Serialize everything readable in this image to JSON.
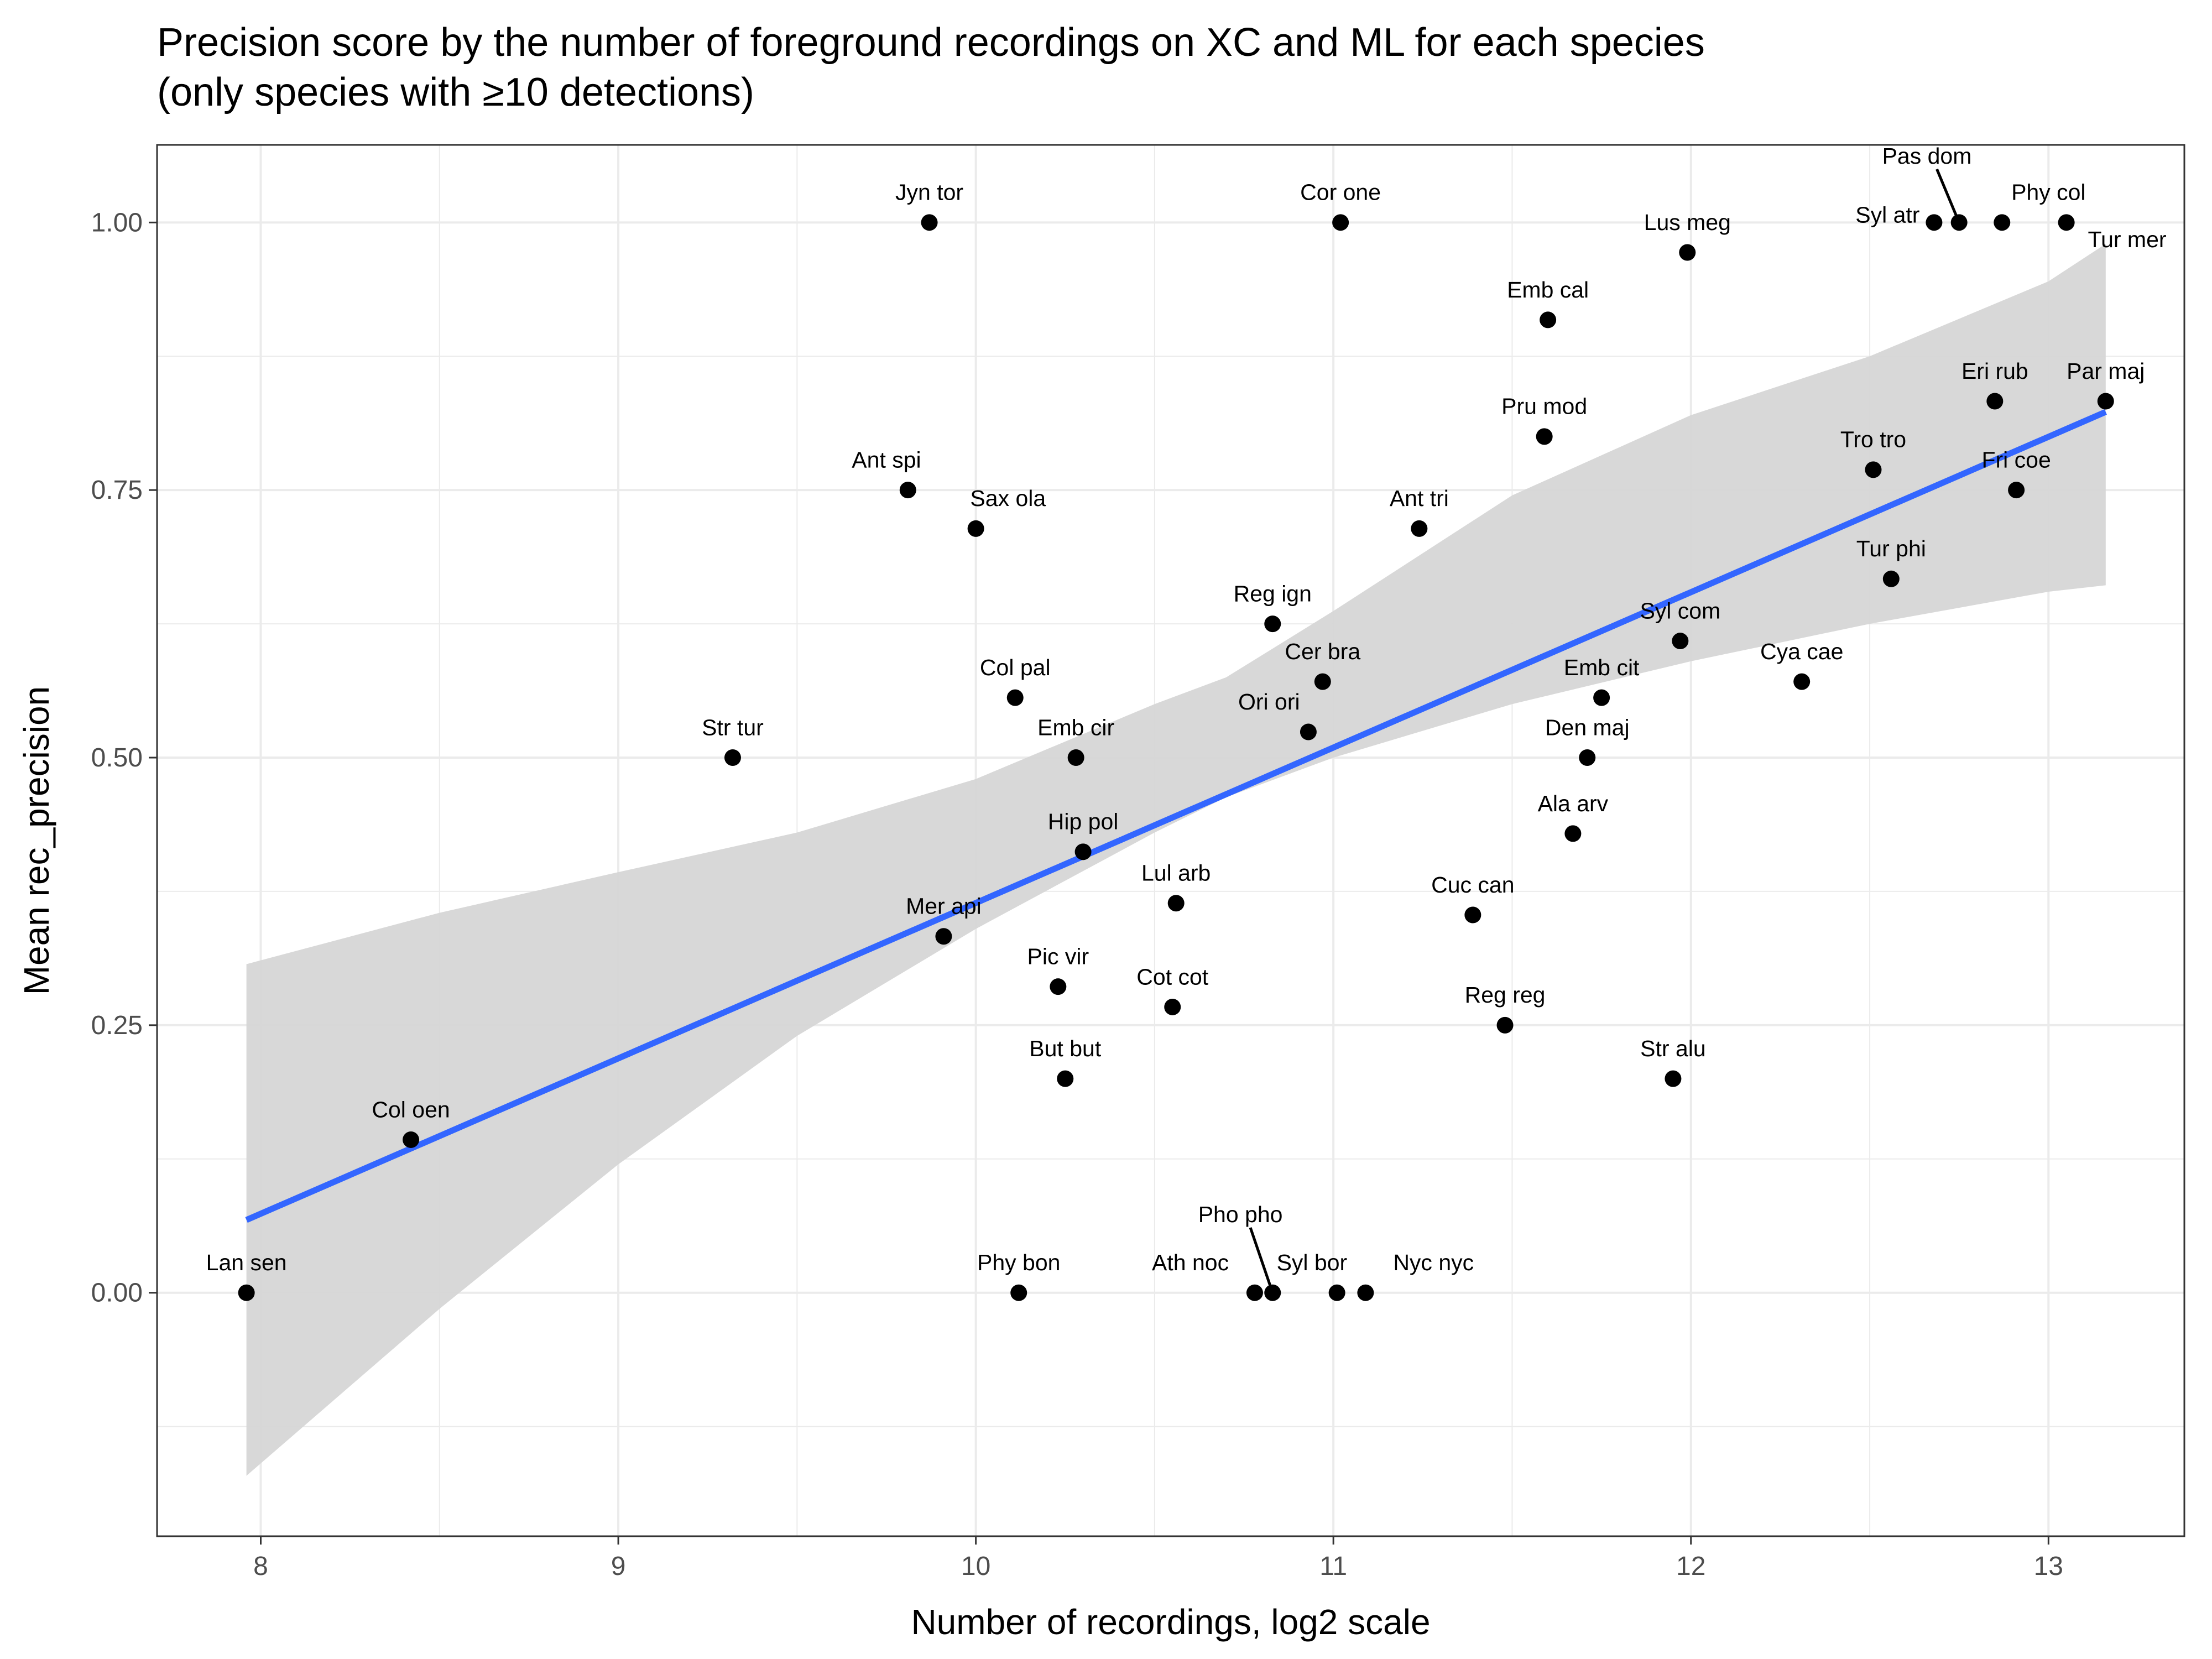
{
  "chart_data": {
    "type": "scatter",
    "title_line1": "Precision score by the number of foreground recordings on XC and ML for each species",
    "title_line2": "(only species with ≥10 detections)",
    "xlabel": "Number of recordings, log2 scale",
    "ylabel": "Mean rec_precision",
    "xlim": [
      7.71,
      13.38
    ],
    "ylim": [
      -0.2275,
      1.0725
    ],
    "x_ticks": [
      {
        "value": 8,
        "label": "8"
      },
      {
        "value": 9,
        "label": "9"
      },
      {
        "value": 10,
        "label": "10"
      },
      {
        "value": 11,
        "label": "11"
      },
      {
        "value": 12,
        "label": "12"
      },
      {
        "value": 13,
        "label": "13"
      }
    ],
    "y_ticks": [
      {
        "value": 0.0,
        "label": "0.00"
      },
      {
        "value": 0.25,
        "label": "0.25"
      },
      {
        "value": 0.5,
        "label": "0.50"
      },
      {
        "value": 0.75,
        "label": "0.75"
      },
      {
        "value": 1.0,
        "label": "1.00"
      }
    ],
    "grid": true,
    "colors": {
      "point": "#000000",
      "line": "#3366ff",
      "band": "#d6d6d6",
      "panel_border": "#333333",
      "grid": "#ebebeb"
    },
    "trend_line": {
      "x": [
        7.96,
        13.16
      ],
      "y": [
        0.068,
        0.823
      ]
    },
    "confidence_band": {
      "x": [
        7.96,
        8.5,
        9.0,
        9.5,
        10.0,
        10.5,
        10.7,
        11.0,
        11.5,
        12.0,
        12.5,
        13.0,
        13.16
      ],
      "lower": [
        -0.171,
        -0.015,
        0.12,
        0.24,
        0.34,
        0.43,
        0.463,
        0.5,
        0.55,
        0.59,
        0.625,
        0.655,
        0.661
      ],
      "upper": [
        0.307,
        0.355,
        0.393,
        0.43,
        0.48,
        0.55,
        0.575,
        0.637,
        0.745,
        0.82,
        0.875,
        0.945,
        0.98
      ]
    },
    "points": [
      {
        "label": "Lan sen",
        "x": 7.96,
        "y": 0.0,
        "lx": 7.96,
        "ly": 0.021
      },
      {
        "label": "Col oen",
        "x": 8.42,
        "y": 0.143,
        "lx": 8.42,
        "ly": 0.164
      },
      {
        "label": "Str tur",
        "x": 9.32,
        "y": 0.5,
        "lx": 9.32,
        "ly": 0.521
      },
      {
        "label": "Ant spi",
        "x": 9.81,
        "y": 0.75,
        "lx": 9.75,
        "ly": 0.771
      },
      {
        "label": "Jyn tor",
        "x": 9.87,
        "y": 1.0,
        "lx": 9.87,
        "ly": 1.021
      },
      {
        "label": "Mer api",
        "x": 9.91,
        "y": 0.333,
        "lx": 9.91,
        "ly": 0.354
      },
      {
        "label": "Sax ola",
        "x": 10.0,
        "y": 0.714,
        "lx": 10.09,
        "ly": 0.735
      },
      {
        "label": "Col pal",
        "x": 10.11,
        "y": 0.556,
        "lx": 10.11,
        "ly": 0.577
      },
      {
        "label": "Phy bon",
        "x": 10.12,
        "y": 0.0,
        "lx": 10.12,
        "ly": 0.021
      },
      {
        "label": "Pic vir",
        "x": 10.23,
        "y": 0.286,
        "lx": 10.23,
        "ly": 0.307
      },
      {
        "label": "But but",
        "x": 10.25,
        "y": 0.2,
        "lx": 10.25,
        "ly": 0.221
      },
      {
        "label": "Emb cir",
        "x": 10.28,
        "y": 0.5,
        "lx": 10.28,
        "ly": 0.521
      },
      {
        "label": "Hip pol",
        "x": 10.3,
        "y": 0.412,
        "lx": 10.3,
        "ly": 0.433
      },
      {
        "label": "Cot cot",
        "x": 10.55,
        "y": 0.267,
        "lx": 10.55,
        "ly": 0.288
      },
      {
        "label": "Lul arb",
        "x": 10.56,
        "y": 0.364,
        "lx": 10.56,
        "ly": 0.385
      },
      {
        "label": "Ath noc",
        "x": 10.78,
        "y": 0.0,
        "lx": 10.6,
        "ly": 0.021
      },
      {
        "label": "Pho pho",
        "x": 10.83,
        "y": 0.0,
        "lx": 10.74,
        "ly": 0.066
      },
      {
        "label": "Reg ign",
        "x": 10.83,
        "y": 0.625,
        "lx": 10.83,
        "ly": 0.646
      },
      {
        "label": "Ori ori",
        "x": 10.93,
        "y": 0.524,
        "lx": 10.82,
        "ly": 0.545
      },
      {
        "label": "Cer bra",
        "x": 10.97,
        "y": 0.571,
        "lx": 10.97,
        "ly": 0.592
      },
      {
        "label": "Syl bor",
        "x": 11.01,
        "y": 0.0,
        "lx": 10.94,
        "ly": 0.021
      },
      {
        "label": "Cor one",
        "x": 11.02,
        "y": 1.0,
        "lx": 11.02,
        "ly": 1.021
      },
      {
        "label": "Nyc nyc",
        "x": 11.09,
        "y": 0.0,
        "lx": 11.28,
        "ly": 0.021
      },
      {
        "label": "Ant tri",
        "x": 11.24,
        "y": 0.714,
        "lx": 11.24,
        "ly": 0.735
      },
      {
        "label": "Cuc can",
        "x": 11.39,
        "y": 0.353,
        "lx": 11.39,
        "ly": 0.374
      },
      {
        "label": "Reg reg",
        "x": 11.48,
        "y": 0.25,
        "lx": 11.48,
        "ly": 0.271
      },
      {
        "label": "Pru mod",
        "x": 11.59,
        "y": 0.8,
        "lx": 11.59,
        "ly": 0.821
      },
      {
        "label": "Emb cal",
        "x": 11.6,
        "y": 0.909,
        "lx": 11.6,
        "ly": 0.93
      },
      {
        "label": "Ala arv",
        "x": 11.67,
        "y": 0.429,
        "lx": 11.67,
        "ly": 0.45
      },
      {
        "label": "Den maj",
        "x": 11.71,
        "y": 0.5,
        "lx": 11.71,
        "ly": 0.521
      },
      {
        "label": "Emb cit",
        "x": 11.75,
        "y": 0.556,
        "lx": 11.75,
        "ly": 0.577
      },
      {
        "label": "Str alu",
        "x": 11.95,
        "y": 0.2,
        "lx": 11.95,
        "ly": 0.221
      },
      {
        "label": "Syl com",
        "x": 11.97,
        "y": 0.609,
        "lx": 11.97,
        "ly": 0.63
      },
      {
        "label": "Lus meg",
        "x": 11.99,
        "y": 0.972,
        "lx": 11.99,
        "ly": 0.993
      },
      {
        "label": "Cya cae",
        "x": 12.31,
        "y": 0.571,
        "lx": 12.31,
        "ly": 0.592
      },
      {
        "label": "Tro tro",
        "x": 12.51,
        "y": 0.769,
        "lx": 12.51,
        "ly": 0.79
      },
      {
        "label": "Tur phi",
        "x": 12.56,
        "y": 0.667,
        "lx": 12.56,
        "ly": 0.688
      },
      {
        "label": "Syl atr",
        "x": 12.68,
        "y": 1.0,
        "lx": 12.55,
        "ly": 1.0
      },
      {
        "label": "Pas dom",
        "x": 12.75,
        "y": 1.0,
        "lx": 12.66,
        "ly": 1.055
      },
      {
        "label": "Eri rub",
        "x": 12.85,
        "y": 0.833,
        "lx": 12.85,
        "ly": 0.854
      },
      {
        "label": "Phy col",
        "x": 12.87,
        "y": 1.0,
        "lx": 13.0,
        "ly": 1.021
      },
      {
        "label": "Fri coe",
        "x": 12.91,
        "y": 0.75,
        "lx": 12.91,
        "ly": 0.771
      },
      {
        "label": "Tur mer",
        "x": 13.05,
        "y": 1.0,
        "lx": 13.22,
        "ly": 0.977
      },
      {
        "label": "Par maj",
        "x": 13.16,
        "y": 0.833,
        "lx": 13.16,
        "ly": 0.854
      }
    ]
  }
}
